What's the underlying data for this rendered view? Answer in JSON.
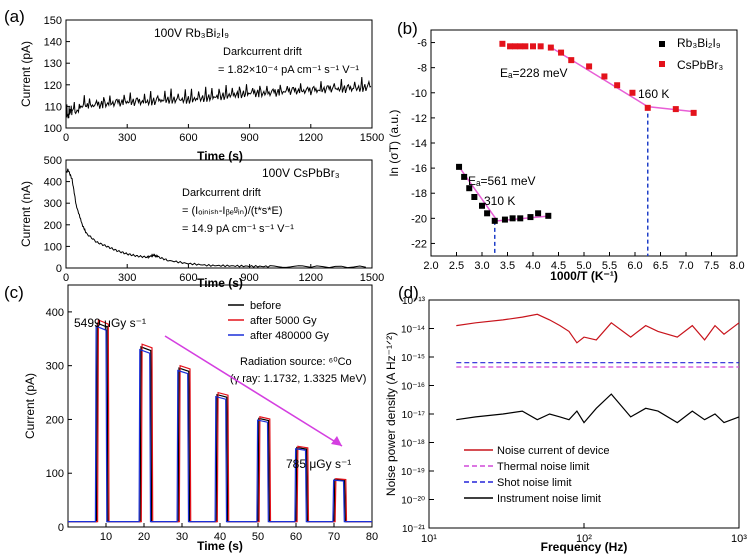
{
  "panels": {
    "a_top": {
      "letter": "(a)",
      "legend": "100V Rb₃Bi₂I₉",
      "note": [
        "Darkcurrent drift",
        "= 1.82×10⁻⁴ pA cm⁻¹ s⁻¹ V⁻¹"
      ],
      "xlabel": "Time (s)",
      "ylabel": "Current (pA)",
      "xlim": [
        0,
        1500
      ],
      "ylim": [
        100,
        150
      ],
      "xticks": [
        "0",
        "300",
        "600",
        "900",
        "1200",
        "1500"
      ],
      "yticks": [
        "100",
        "110",
        "120",
        "130",
        "140",
        "150"
      ]
    },
    "a_bottom": {
      "legend": "100V CsPbBr₃",
      "note": [
        "Darkcurrent drift",
        "= (Iₒᵢₙᵢₛₕ-Iᵦₑᵍᵢₙ)/(t*s*E)",
        "= 14.9 pA cm⁻¹ s⁻¹ V⁻¹"
      ],
      "xlabel": "Time (s)",
      "ylabel": "Current (nA)",
      "xlim": [
        0,
        1500
      ],
      "ylim": [
        0,
        500
      ],
      "xticks": [
        "0",
        "300",
        "600",
        "900",
        "1200",
        "1500"
      ],
      "yticks": [
        "0",
        "100",
        "200",
        "300",
        "400",
        "500"
      ]
    },
    "b": {
      "letter": "(b)",
      "xlabel": "1000/T (K⁻¹)",
      "ylabel": "ln (σT) (a.u.)",
      "xlim": [
        2.0,
        8.0
      ],
      "ylim": [
        -23,
        -5
      ],
      "xticks": [
        "2.0",
        "2.5",
        "3.0",
        "3.5",
        "4.0",
        "4.5",
        "5.0",
        "5.5",
        "6.0",
        "6.5",
        "7.0",
        "7.5",
        "8.0"
      ],
      "yticks": [
        "-6",
        "-8",
        "-10",
        "-12",
        "-14",
        "-16",
        "-18",
        "-20",
        "-22"
      ],
      "legend": [
        "Rb₃Bi₂I₉",
        "CsPbBr₃"
      ],
      "annotations": [
        "Eₐ=228 meV",
        "160 K",
        "Eₐ=561 meV",
        "310 K"
      ]
    },
    "c": {
      "letter": "(c)",
      "xlabel": "Time (s)",
      "ylabel": "Current (pA)",
      "xlim": [
        0,
        80
      ],
      "ylim": [
        0,
        450
      ],
      "xticks": [
        "10",
        "20",
        "30",
        "40",
        "50",
        "60",
        "70",
        "80"
      ],
      "yticks": [
        "0",
        "100",
        "200",
        "300",
        "400"
      ],
      "legend": [
        "before",
        "after 5000 Gy",
        "after 480000 Gy"
      ],
      "annotations": [
        "5499 μGy s⁻¹",
        "785 μGy s⁻¹",
        "Radiation source: ⁶⁰Co",
        "(γ ray: 1.1732, 1.3325 MeV)"
      ]
    },
    "d": {
      "letter": "(d)",
      "xlabel": "Frequency (Hz)",
      "ylabel": "Noise power density (A Hz⁻¹ᐟ²)",
      "xlim": [
        10,
        1000
      ],
      "ylim_exp": [
        -21,
        -13
      ],
      "xticks": [
        "10¹",
        "10²",
        "10³"
      ],
      "yticks": [
        "10⁻¹³",
        "10⁻¹⁴",
        "10⁻¹⁵",
        "10⁻¹⁶",
        "10⁻¹⁷",
        "10⁻¹⁸",
        "10⁻¹⁹",
        "10⁻²⁰",
        "10⁻²¹"
      ],
      "legend": [
        "Noise current of device",
        "Thermal noise limit",
        "Shot noise limit",
        "Instrument noise limit"
      ]
    }
  },
  "chart_data": [
    {
      "type": "line",
      "panel": "a_top",
      "series": [
        {
          "name": "100V Rb₃Bi₂I₉",
          "color": "#000000",
          "x": [
            0,
            30,
            100,
            200,
            300,
            400,
            500,
            600,
            700,
            800,
            900,
            1000,
            1100,
            1200,
            1300,
            1400,
            1500
          ],
          "y": [
            105,
            108,
            110,
            111,
            112,
            112,
            113,
            113,
            114,
            115,
            116,
            116,
            117,
            117,
            118,
            118,
            119
          ]
        }
      ]
    },
    {
      "type": "line",
      "panel": "a_bottom",
      "series": [
        {
          "name": "100V CsPbBr₃",
          "color": "#000000",
          "x": [
            0,
            10,
            30,
            50,
            80,
            100,
            150,
            200,
            250,
            300,
            350,
            400,
            430,
            450,
            500,
            600,
            700,
            800,
            900,
            1000,
            1200,
            1500
          ],
          "y": [
            440,
            455,
            410,
            290,
            200,
            160,
            120,
            100,
            80,
            65,
            55,
            50,
            60,
            52,
            35,
            20,
            12,
            10,
            8,
            7,
            6,
            5
          ]
        }
      ]
    },
    {
      "type": "scatter",
      "panel": "b",
      "series": [
        {
          "name": "Rb₃Bi₂I₉",
          "color": "#000000",
          "x": [
            2.55,
            2.65,
            2.75,
            2.85,
            3.0,
            3.1,
            3.25,
            3.45,
            3.6,
            3.75,
            3.95,
            4.1,
            4.3
          ],
          "y": [
            -15.9,
            -16.7,
            -17.6,
            -18.3,
            -19.0,
            -19.6,
            -20.2,
            -20.1,
            -20.0,
            -20.0,
            -19.9,
            -19.6,
            -19.8
          ]
        },
        {
          "name": "CsPbBr₃",
          "color": "#e3121b",
          "x": [
            3.4,
            3.55,
            3.65,
            3.75,
            3.85,
            4.0,
            4.15,
            4.35,
            4.55,
            4.75,
            5.1,
            5.4,
            5.65,
            5.95,
            6.25,
            6.8,
            7.15
          ],
          "y": [
            -6.1,
            -6.3,
            -6.3,
            -6.3,
            -6.3,
            -6.3,
            -6.3,
            -6.4,
            -6.8,
            -7.4,
            -7.9,
            -8.7,
            -9.4,
            -10.0,
            -11.2,
            -11.3,
            -11.6
          ]
        }
      ],
      "fits": [
        {
          "color": "#e85fd6",
          "x": [
            4.4,
            6.25,
            7.15
          ],
          "y": [
            -6.5,
            -11.1,
            -11.5
          ]
        },
        {
          "color": "#e85fd6",
          "x": [
            2.55,
            3.3,
            4.35
          ],
          "y": [
            -15.9,
            -20.2,
            -19.8
          ]
        }
      ],
      "markers": [
        {
          "x": 6.25,
          "y": -11.1,
          "color": "#1f3fc8"
        },
        {
          "x": 3.25,
          "y": -20.2,
          "color": "#1f3fc8"
        }
      ]
    },
    {
      "type": "line",
      "panel": "c",
      "pulses": {
        "starts": [
          7.5,
          19.0,
          29.0,
          39.0,
          50.0,
          60.0,
          70.0
        ],
        "width": 3.0,
        "heights": [
          385,
          340,
          300,
          250,
          205,
          150,
          90
        ],
        "baseline": 10
      },
      "series": [
        {
          "name": "before",
          "color": "#000000",
          "offset_s": 0.0,
          "scale": 0.985
        },
        {
          "name": "after 5000 Gy",
          "color": "#e3121b",
          "offset_s": 0.3,
          "scale": 1.0
        },
        {
          "name": "after 480000 Gy",
          "color": "#1b2fd8",
          "offset_s": -0.3,
          "scale": 0.97
        }
      ]
    },
    {
      "type": "line",
      "panel": "d",
      "yscale": "log",
      "xscale": "log",
      "series": [
        {
          "name": "Noise current of device",
          "color": "#c8141c",
          "style": "solid",
          "x": [
            15,
            20,
            30,
            40,
            50,
            60,
            70,
            80,
            90,
            100,
            120,
            150,
            200,
            250,
            300,
            400,
            500,
            600,
            700,
            800,
            1000
          ],
          "logy": [
            -13.9,
            -13.8,
            -13.7,
            -13.6,
            -13.5,
            -13.7,
            -13.9,
            -14.1,
            -14.5,
            -14.3,
            -14.4,
            -13.8,
            -14.3,
            -13.9,
            -14.1,
            -14.3,
            -13.9,
            -14.4,
            -13.9,
            -14.2,
            -13.8
          ]
        },
        {
          "name": "Thermal noise limit",
          "color": "#d048d8",
          "style": "dashed",
          "x": [
            15,
            1000
          ],
          "logy": [
            -15.35,
            -15.35
          ]
        },
        {
          "name": "Shot noise limit",
          "color": "#2424d8",
          "style": "dashed",
          "x": [
            15,
            1000
          ],
          "logy": [
            -15.2,
            -15.2
          ]
        },
        {
          "name": "Instrument noise limit",
          "color": "#000000",
          "style": "solid",
          "x": [
            15,
            20,
            30,
            40,
            50,
            60,
            70,
            80,
            90,
            100,
            120,
            150,
            200,
            250,
            300,
            400,
            500,
            600,
            700,
            800,
            1000
          ],
          "logy": [
            -17.2,
            -17.1,
            -17.0,
            -16.9,
            -17.2,
            -17.0,
            -17.1,
            -17.2,
            -16.9,
            -17.3,
            -16.8,
            -16.3,
            -17.1,
            -16.8,
            -16.9,
            -17.3,
            -16.9,
            -17.2,
            -17.0,
            -17.3,
            -17.1
          ]
        }
      ]
    }
  ]
}
